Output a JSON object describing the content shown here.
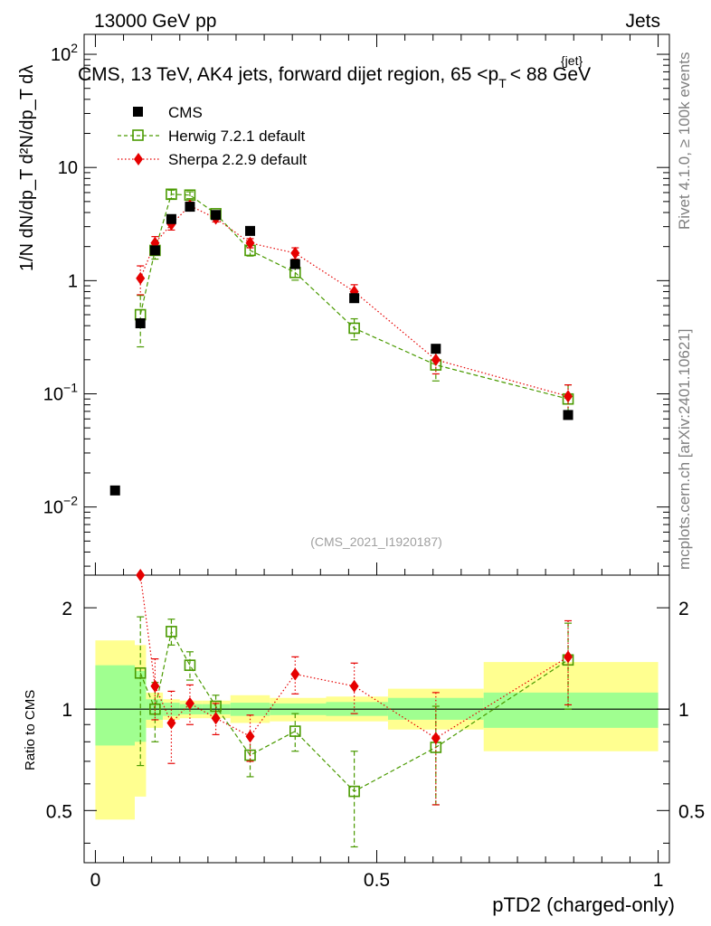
{
  "header": {
    "left": "13000 GeV pp",
    "right": "Jets",
    "title_main": "CMS, 13 TeV, AK4 jets, forward dijet region, 65 <p",
    "title_sub": "T",
    "title_sup": "{jet}",
    "title_end": "< 88 GeV",
    "analysis_id": "(CMS_2021_I1920187)"
  },
  "side_labels": {
    "rivet": "Rivet 4.1.0, ≥ 100k events",
    "mcplots": "mcplots.cern.ch [arXiv:2401.10621]"
  },
  "axes": {
    "ylabel_main": "1/N dN/dp_T d²N/dp_T dλ",
    "ylabel_ratio": "Ratio to CMS",
    "xlabel": "pTD2 (charged-only)",
    "x_ticks": [
      "0",
      "0.5",
      "1"
    ],
    "x_tick_values": [
      0,
      0.5,
      1
    ],
    "y_ticks_main": [
      {
        "value": 0.01,
        "base": "10",
        "exp": "−2"
      },
      {
        "value": 0.1,
        "base": "10",
        "exp": "−1"
      },
      {
        "value": 1,
        "base": "1",
        "exp": ""
      },
      {
        "value": 10,
        "base": "10",
        "exp": ""
      },
      {
        "value": 100,
        "base": "10",
        "exp": "2"
      }
    ],
    "y_ticks_ratio": [
      "0.5",
      "1",
      "2"
    ],
    "y_tick_values_ratio": [
      0.5,
      1,
      2
    ]
  },
  "chart_data": {
    "type": "scatter",
    "x_range": [
      -0.02,
      1.02
    ],
    "main_panel": {
      "yscale": "log",
      "ylim": [
        0.0025,
        150
      ],
      "series": [
        {
          "name": "CMS",
          "marker": "square-filled",
          "color": "#000000",
          "x": [
            0.035,
            0.08,
            0.106,
            0.135,
            0.168,
            0.214,
            0.275,
            0.355,
            0.46,
            0.605,
            0.84
          ],
          "y": [
            0.014,
            0.42,
            1.85,
            3.5,
            4.5,
            3.8,
            2.75,
            1.4,
            0.7,
            0.25,
            0.065
          ]
        },
        {
          "name": "Herwig 7.2.1 default",
          "marker": "square-open",
          "color": "#4a9a00",
          "line": "dashed",
          "x": [
            0.08,
            0.106,
            0.135,
            0.168,
            0.214,
            0.275,
            0.355,
            0.46,
            0.605,
            0.84
          ],
          "y": [
            0.5,
            1.85,
            5.8,
            5.7,
            3.9,
            1.85,
            1.18,
            0.38,
            0.18,
            0.09
          ],
          "y_err": [
            0.24,
            0.3,
            0.5,
            0.4,
            0.25,
            0.2,
            0.17,
            0.08,
            0.05,
            0.03
          ]
        },
        {
          "name": "Sherpa 2.2.9 default",
          "marker": "diamond",
          "color": "#e60000",
          "line": "dotted",
          "x": [
            0.08,
            0.106,
            0.135,
            0.168,
            0.214,
            0.275,
            0.355,
            0.46,
            0.605,
            0.84
          ],
          "y": [
            1.05,
            2.15,
            3.15,
            4.6,
            3.55,
            2.15,
            1.75,
            0.8,
            0.2,
            0.095
          ],
          "y_err": [
            0.3,
            0.3,
            0.35,
            0.35,
            0.25,
            0.2,
            0.2,
            0.12,
            0.05,
            0.025
          ]
        }
      ]
    },
    "ratio_panel": {
      "yscale": "log",
      "ylim": [
        0.35,
        2.5
      ],
      "reference_line": 1,
      "bands": [
        {
          "x0": 0.0,
          "x1": 0.07,
          "stat_lo": 0.78,
          "stat_hi": 1.35,
          "tot_lo": 0.47,
          "tot_hi": 1.6
        },
        {
          "x0": 0.07,
          "x1": 0.09,
          "stat_lo": 0.8,
          "stat_hi": 1.3,
          "tot_lo": 0.55,
          "tot_hi": 1.55
        },
        {
          "x0": 0.09,
          "x1": 0.12,
          "stat_lo": 0.93,
          "stat_hi": 1.07,
          "tot_lo": 0.88,
          "tot_hi": 1.12
        },
        {
          "x0": 0.12,
          "x1": 0.15,
          "stat_lo": 0.955,
          "stat_hi": 1.045,
          "tot_lo": 0.93,
          "tot_hi": 1.07
        },
        {
          "x0": 0.15,
          "x1": 0.19,
          "stat_lo": 0.965,
          "stat_hi": 1.035,
          "tot_lo": 0.94,
          "tot_hi": 1.06
        },
        {
          "x0": 0.19,
          "x1": 0.24,
          "stat_lo": 0.965,
          "stat_hi": 1.035,
          "tot_lo": 0.94,
          "tot_hi": 1.06
        },
        {
          "x0": 0.24,
          "x1": 0.31,
          "stat_lo": 0.955,
          "stat_hi": 1.045,
          "tot_lo": 0.91,
          "tot_hi": 1.1
        },
        {
          "x0": 0.31,
          "x1": 0.41,
          "stat_lo": 0.96,
          "stat_hi": 1.04,
          "tot_lo": 0.92,
          "tot_hi": 1.08
        },
        {
          "x0": 0.41,
          "x1": 0.52,
          "stat_lo": 0.955,
          "stat_hi": 1.05,
          "tot_lo": 0.92,
          "tot_hi": 1.09
        },
        {
          "x0": 0.52,
          "x1": 0.69,
          "stat_lo": 0.93,
          "stat_hi": 1.08,
          "tot_lo": 0.87,
          "tot_hi": 1.15
        },
        {
          "x0": 0.69,
          "x1": 1.0,
          "stat_lo": 0.88,
          "stat_hi": 1.12,
          "tot_lo": 0.75,
          "tot_hi": 1.38
        }
      ],
      "series": [
        {
          "name": "Herwig 7.2.1 default",
          "x": [
            0.08,
            0.106,
            0.135,
            0.168,
            0.214,
            0.275,
            0.355,
            0.46,
            0.605,
            0.84
          ],
          "y": [
            1.28,
            1.0,
            1.7,
            1.35,
            1.02,
            0.73,
            0.86,
            0.57,
            0.77,
            1.4
          ],
          "y_err": [
            0.6,
            0.2,
            0.15,
            0.13,
            0.08,
            0.1,
            0.11,
            0.18,
            0.25,
            0.4
          ]
        },
        {
          "name": "Sherpa 2.2.9 default",
          "x": [
            0.08,
            0.106,
            0.135,
            0.168,
            0.214,
            0.275,
            0.355,
            0.46,
            0.605,
            0.84
          ],
          "y": [
            2.5,
            1.17,
            0.91,
            1.04,
            0.94,
            0.83,
            1.27,
            1.17,
            0.82,
            1.43
          ],
          "y_err": [
            0.0,
            0.24,
            0.22,
            0.14,
            0.1,
            0.13,
            0.16,
            0.2,
            0.3,
            0.4
          ]
        }
      ]
    },
    "colors": {
      "cms": "#000000",
      "herwig": "#4a9a00",
      "sherpa": "#e60000",
      "band_stat": "#a0ff90",
      "band_total": "#ffff90"
    }
  }
}
